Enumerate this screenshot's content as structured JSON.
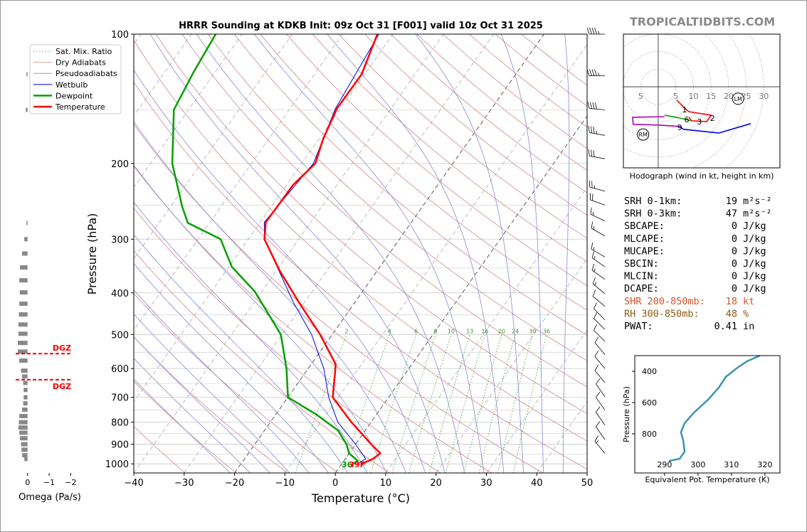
{
  "header": {
    "brand": "TROPICALTIDBITS.COM"
  },
  "chart_data": [
    {
      "type": "skewt",
      "title": "HRRR Sounding at KDKB Init: 09z Oct 31 [F001] valid 10z Oct 31 2025",
      "xlabel": "Temperature (°C)",
      "ylabel": "Pressure (hPa)",
      "xlim": [
        -40,
        50
      ],
      "ylim": [
        1050,
        100
      ],
      "log_y": true,
      "grid": true,
      "xticks": [
        {
          "value": -40,
          "label": "−40"
        },
        {
          "value": -30,
          "label": "−30"
        },
        {
          "value": -20,
          "label": "−20"
        },
        {
          "value": -10,
          "label": "−10"
        },
        0,
        10,
        20,
        30,
        40,
        50
      ],
      "yticks": [
        100,
        200,
        300,
        400,
        500,
        600,
        700,
        800,
        900,
        1000
      ],
      "background_lines": [
        {
          "name": "Sat. Mix. Ratio",
          "color": "#2e9a2e",
          "style": "dotted"
        },
        {
          "name": "Dry Adiabats",
          "color": "#d08888",
          "style": "solid"
        },
        {
          "name": "Pseudoadiabats",
          "color": "#8888d8",
          "style": "solid"
        }
      ],
      "mixing_ratio_labels": [
        2,
        4,
        6,
        8,
        10,
        13,
        16,
        20,
        24,
        30,
        36
      ],
      "series": [
        {
          "name": "Wetbulb",
          "color": "#0000ee",
          "width": 1,
          "pressure": [
            100,
            149,
            200,
            274,
            300,
            421,
            500,
            600,
            700,
            800,
            900,
            974,
            1000
          ],
          "values": [
            -52.8,
            -51,
            -47.7,
            -49.2,
            -46.8,
            -32.2,
            -24.1,
            -16.9,
            -11.9,
            -6.6,
            0,
            4.1,
            3.0
          ]
        },
        {
          "name": "Dewpoint",
          "color": "#00a000",
          "width": 2.5,
          "pressure": [
            100,
            122,
            150,
            200,
            252,
            275,
            300,
            348,
            397,
            500,
            600,
            700,
            768,
            836,
            900,
            945,
            985,
            1000
          ],
          "values": [
            -85.2,
            -84.3,
            -82.9,
            -75.7,
            -67.7,
            -64.3,
            -55.5,
            -49.4,
            -41.4,
            -30.2,
            -24.3,
            -20,
            -11.9,
            -5.4,
            -1.8,
            0,
            2.8,
            2.2
          ]
        },
        {
          "name": "Temperature",
          "color": "#ff0000",
          "width": 2.5,
          "pressure": [
            100,
            124,
            149,
            175,
            200,
            224,
            274,
            300,
            355,
            421,
            500,
            587,
            700,
            800,
            900,
            945,
            974,
            1000
          ],
          "values": [
            -53.1,
            -50.6,
            -50.7,
            -49.2,
            -47.3,
            -48.7,
            -48.9,
            -46.8,
            -39.4,
            -31.1,
            -22.4,
            -15.1,
            -11.1,
            -3.9,
            3.1,
            6.2,
            5.5,
            3.9
          ]
        }
      ],
      "surface_labels": {
        "dewpoint": "36",
        "temperature": "39F"
      },
      "wind_barbs": {
        "pressure": [
          100,
          125,
          150,
          172,
          195,
          232,
          250,
          272,
          295,
          330,
          348,
          372,
          402,
          430,
          462,
          487,
          519,
          557,
          600,
          647,
          698,
          750,
          812,
          878,
          945
        ],
        "speed": [
          45,
          45,
          40,
          35,
          30,
          25,
          20,
          15,
          15,
          15,
          15,
          15,
          15,
          10,
          10,
          10,
          10,
          10,
          10,
          10,
          10,
          10,
          10,
          10,
          15
        ],
        "direction": [
          270,
          270,
          275,
          280,
          280,
          285,
          290,
          295,
          300,
          300,
          305,
          305,
          310,
          310,
          315,
          315,
          315,
          320,
          320,
          320,
          325,
          325,
          325,
          325,
          320
        ]
      }
    },
    {
      "type": "hbar",
      "xlabel": "Omega (Pa/s)",
      "xlim": [
        0.55,
        -2.25
      ],
      "ylim": [
        1050,
        100
      ],
      "log_y": true,
      "color": "#888888",
      "xticks": [
        0,
        {
          "value": -1,
          "label": "−1"
        },
        {
          "value": -2,
          "label": "−2"
        }
      ],
      "pressure": [
        124,
        150,
        275,
        300,
        324,
        349,
        374,
        399,
        424,
        449,
        474,
        498,
        523,
        548,
        575,
        607,
        626,
        648,
        673,
        700,
        723,
        748,
        774,
        800,
        823,
        846,
        872,
        900,
        927,
        955,
        974
      ],
      "values": [
        0.05,
        0.08,
        0.05,
        0.15,
        0.25,
        0.35,
        0.38,
        0.36,
        0.38,
        0.4,
        0.42,
        0.42,
        0.45,
        0.45,
        0.38,
        0.3,
        0.25,
        0.2,
        0.18,
        0.18,
        0.2,
        0.25,
        0.38,
        0.4,
        0.42,
        0.38,
        0.35,
        0.3,
        0.28,
        0.25,
        0.15
      ],
      "dgz": {
        "label": "DGZ",
        "pressure": [
          554,
          637
        ],
        "color": "#ff0000"
      }
    },
    {
      "type": "hodograph",
      "caption": "Hodograph (wind in kt, height in km)",
      "xlim": [
        -9.9,
        34.6
      ],
      "ylim": [
        -23.1,
        15.0
      ],
      "ring_labels": [
        5,
        10,
        15,
        20,
        25,
        30
      ],
      "segments": [
        {
          "color": "#ff0000",
          "u": [
            5.3,
            7.5,
            8.7,
            15.0,
            13.8,
            9.5,
            8.7
          ],
          "v": [
            -3.8,
            -6.1,
            -7.1,
            -8.1,
            -9.9,
            -9.7,
            -8.7
          ]
        },
        {
          "color": "#00a000",
          "u": [
            9.5,
            5.1,
            1.8
          ],
          "v": [
            -9.7,
            -8.7,
            -8.1
          ]
        },
        {
          "color": "#b000b0",
          "u": [
            1.8,
            -7.3,
            -7.1,
            0,
            6.1
          ],
          "v": [
            -8.5,
            -8.7,
            -10.7,
            -10.9,
            -11.3
          ]
        },
        {
          "color": "#0000ee",
          "u": [
            6.1,
            7.1,
            17.2,
            26.3
          ],
          "v": [
            -11.3,
            -12.1,
            -13.2,
            -10.5
          ]
        }
      ],
      "height_labels": [
        {
          "text": "1",
          "u": 7.5,
          "v": -6.5
        },
        {
          "text": "2",
          "u": 15.4,
          "v": -8.9
        },
        {
          "text": "3",
          "u": 11.7,
          "v": -9.9
        },
        {
          "text": "6",
          "u": 8.1,
          "v": -9.3
        },
        {
          "text": "9",
          "u": 6.1,
          "v": -11.5
        }
      ],
      "storm_motions": [
        {
          "label": "LM",
          "u": 22.7,
          "v": -3.4
        },
        {
          "label": "RM",
          "u": -4.3,
          "v": -13.6
        }
      ]
    },
    {
      "type": "line",
      "xlabel": "Equivalent Pot. Temperature (K)",
      "ylabel": "Pressure (hPa)",
      "xlim": [
        281.1,
        324.5
      ],
      "ylim": [
        1050,
        300
      ],
      "color": "#3a95b0",
      "xticks": [
        290,
        300,
        310,
        320
      ],
      "yticks": [
        400,
        600,
        800
      ],
      "x": [
        291.3,
        294.5,
        296.0,
        295.6,
        294.9,
        296.0,
        298.8,
        303.0,
        306.2,
        308.3,
        311.5,
        314.7,
        318.5
      ],
      "y": [
        973,
        959,
        914,
        845,
        791,
        732,
        664,
        582,
        505,
        436,
        382,
        336,
        300
      ]
    }
  ],
  "parameters": {
    "rows": [
      {
        "label": "SRH 0-1km:",
        "value": 19,
        "unit": "m²s⁻²",
        "color": "#000000"
      },
      {
        "label": "SRH 0-3km:",
        "value": 47,
        "unit": "m²s⁻²",
        "color": "#000000"
      },
      {
        "label": "SBCAPE:",
        "value": 0,
        "unit": "J/kg",
        "color": "#000000"
      },
      {
        "label": "MLCAPE:",
        "value": 0,
        "unit": "J/kg",
        "color": "#000000"
      },
      {
        "label": "MUCAPE:",
        "value": 0,
        "unit": "J/kg",
        "color": "#000000"
      },
      {
        "label": "SBCIN:",
        "value": 0,
        "unit": "J/kg",
        "color": "#000000"
      },
      {
        "label": "MLCIN:",
        "value": 0,
        "unit": "J/kg",
        "color": "#000000"
      },
      {
        "label": "DCAPE:",
        "value": 0,
        "unit": "J/kg",
        "color": "#000000"
      },
      {
        "label": "SHR 200-850mb:",
        "value": 18,
        "unit": "kt",
        "color": "#d2572a"
      },
      {
        "label": "RH 300-850mb:",
        "value": 48,
        "unit": "%",
        "color": "#8b5a14"
      },
      {
        "label": "PWAT:",
        "value": 0.41,
        "unit": "in",
        "color": "#000000"
      }
    ]
  }
}
